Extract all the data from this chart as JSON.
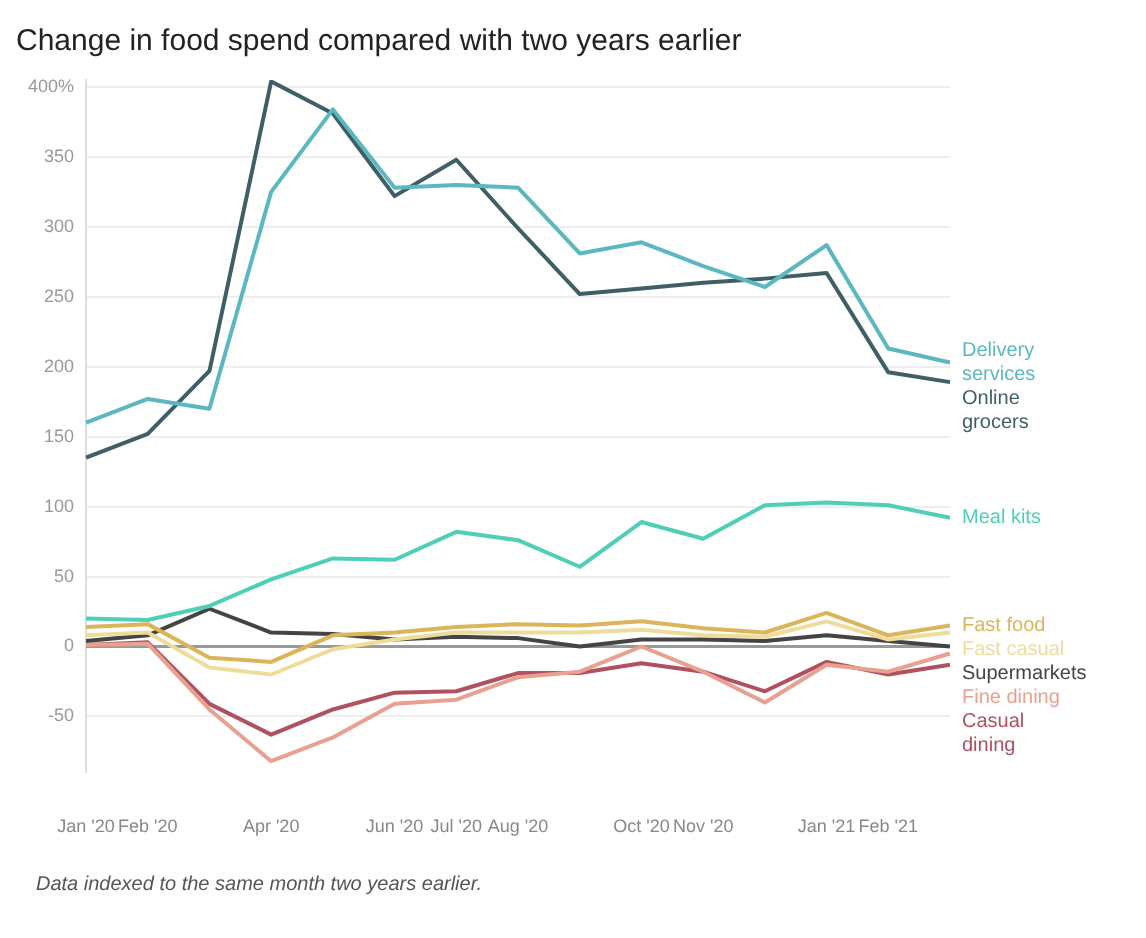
{
  "chart_data": {
    "type": "line",
    "title": "Change in food spend compared with two years earlier",
    "categories": [
      "Jan '20",
      "Feb '20",
      null,
      "Apr '20",
      null,
      "Jun '20",
      "Jul '20",
      "Aug '20",
      null,
      "Oct '20",
      "Nov '20",
      null,
      "Jan '21",
      "Feb '21",
      null
    ],
    "series": [
      {
        "name": "Delivery services",
        "color": "#5bb8c0",
        "values": [
          160,
          177,
          170,
          325,
          384,
          328,
          330,
          328,
          281,
          289,
          272,
          257,
          287,
          213,
          203
        ]
      },
      {
        "name": "Online grocers",
        "color": "#3f5f66",
        "values": [
          135,
          152,
          197,
          404,
          381,
          322,
          348,
          299,
          252,
          256,
          260,
          263,
          267,
          196,
          189
        ]
      },
      {
        "name": "Meal kits",
        "color": "#4fcfb8",
        "values": [
          20,
          19,
          29,
          48,
          63,
          62,
          82,
          76,
          57,
          89,
          77,
          101,
          103,
          101,
          92
        ]
      },
      {
        "name": "Fast food",
        "color": "#dcb45a",
        "values": [
          14,
          16,
          -8,
          -11,
          8,
          10,
          14,
          16,
          15,
          18,
          13,
          10,
          24,
          8,
          15
        ]
      },
      {
        "name": "Fast casual",
        "color": "#f0dc9a",
        "values": [
          8,
          10,
          -15,
          -20,
          -2,
          5,
          10,
          10,
          10,
          12,
          8,
          7,
          18,
          5,
          10
        ]
      },
      {
        "name": "Supermarkets",
        "color": "#444444",
        "values": [
          4,
          8,
          27,
          10,
          9,
          5,
          7,
          6,
          0,
          5,
          5,
          4,
          8,
          4,
          0
        ]
      },
      {
        "name": "Fine dining",
        "color": "#e8a090",
        "values": [
          1,
          2,
          -45,
          -82,
          -65,
          -41,
          -38,
          -22,
          -18,
          0,
          -18,
          -40,
          -13,
          -18,
          -5
        ]
      },
      {
        "name": "Casual dining",
        "color": "#b05060",
        "values": [
          1,
          3,
          -41,
          -63,
          -45,
          -33,
          -32,
          -19,
          -19,
          -12,
          -18,
          -32,
          -11,
          -20,
          -13
        ]
      }
    ],
    "ylim": [
      -90,
      405
    ],
    "yticks": [
      -50,
      0,
      50,
      100,
      150,
      200,
      250,
      300,
      350,
      {
        "value": 400,
        "label": "400%"
      }
    ],
    "grid": "y",
    "legend": false,
    "marker": "none",
    "line_style": "solid",
    "ref_lines": [
      {
        "axis": "y",
        "value": 0,
        "color": "#999999"
      }
    ],
    "annotations": [
      "Data indexed to the same month two years earlier."
    ]
  }
}
